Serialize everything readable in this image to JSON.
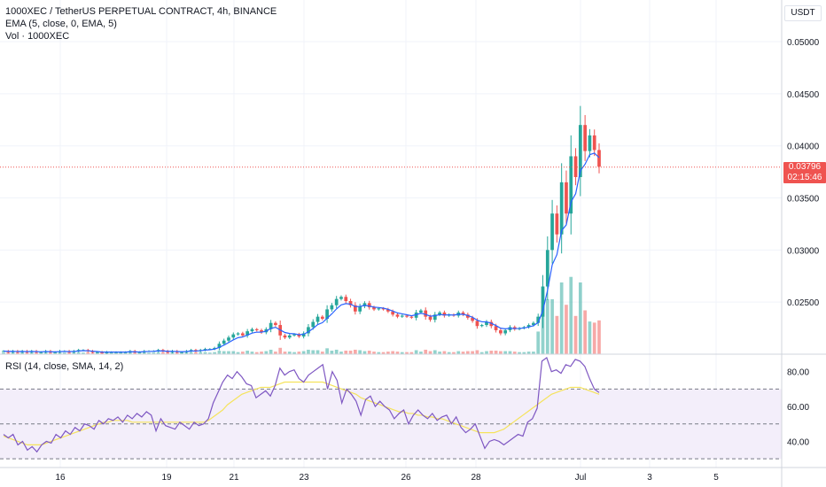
{
  "header": {
    "symbol_line": "1000XEC / TetherUS PERPETUAL CONTRACT, 4h, BINANCE",
    "ema_legend": "EMA (5, close, 0, EMA, 5)",
    "volume_legend": "Vol · 1000XEC"
  },
  "price_axis": {
    "currency": "USDT",
    "last_price": "0.03796",
    "countdown": "02:15:46"
  },
  "rsi_panel": {
    "legend": "RSI (14, close, SMA, 14, 2)"
  },
  "colors": {
    "up": "#26a69a",
    "down": "#ef5350",
    "ema": "#2962ff",
    "rsi_line": "#7e57c2",
    "rsi_ma": "#f5e35c",
    "band_fill": "#f3eefa",
    "grid": "#f0f3fa"
  },
  "chart_data": [
    {
      "type": "candlestick",
      "title": "1000XEC / TetherUS PERPETUAL CONTRACT, 4h, BINANCE",
      "x_ticks": [
        "16",
        "19",
        "21",
        "23",
        "26",
        "28",
        "Jul",
        "3",
        "5"
      ],
      "y_ticks": [
        "0.05000",
        "0.04500",
        "0.04000",
        "0.03500",
        "0.03000",
        "0.02500"
      ],
      "ylim": [
        0.02,
        0.054
      ],
      "last_price": 0.03796,
      "series_closes": [
        0.0203,
        0.0202,
        0.0203,
        0.0202,
        0.0203,
        0.0202,
        0.0203,
        0.0202,
        0.0202,
        0.0203,
        0.0202,
        0.0202,
        0.0203,
        0.0203,
        0.0202,
        0.0203,
        0.0204,
        0.0204,
        0.0203,
        0.0202,
        0.0202,
        0.0201,
        0.0202,
        0.0202,
        0.0202,
        0.0202,
        0.0202,
        0.0203,
        0.0202,
        0.0202,
        0.0203,
        0.0203,
        0.0203,
        0.0204,
        0.0203,
        0.0202,
        0.0203,
        0.0202,
        0.0202,
        0.0203,
        0.0204,
        0.0203,
        0.0204,
        0.0205,
        0.0205,
        0.0206,
        0.021,
        0.0213,
        0.0216,
        0.0219,
        0.022,
        0.0218,
        0.0222,
        0.0224,
        0.0223,
        0.0221,
        0.0224,
        0.023,
        0.0228,
        0.0218,
        0.0216,
        0.0218,
        0.0219,
        0.0217,
        0.022,
        0.0226,
        0.0231,
        0.0236,
        0.0234,
        0.0243,
        0.0247,
        0.0253,
        0.0255,
        0.0251,
        0.0247,
        0.0241,
        0.0246,
        0.0249,
        0.0245,
        0.0243,
        0.0244,
        0.0243,
        0.0241,
        0.0238,
        0.0236,
        0.0237,
        0.0236,
        0.0235,
        0.024,
        0.0242,
        0.0236,
        0.0233,
        0.0238,
        0.024,
        0.0237,
        0.0238,
        0.0237,
        0.024,
        0.0238,
        0.0235,
        0.0232,
        0.0227,
        0.0228,
        0.0231,
        0.0227,
        0.0223,
        0.022,
        0.0223,
        0.0226,
        0.0224,
        0.0225,
        0.0226,
        0.0228,
        0.023,
        0.0236,
        0.0265,
        0.03,
        0.0335,
        0.0315,
        0.0365,
        0.0335,
        0.039,
        0.037,
        0.042,
        0.0395,
        0.041,
        0.0396,
        0.038
      ],
      "volume_range_note": "volume spike at end of June"
    },
    {
      "type": "line",
      "title": "RSI (14, close, SMA, 14, 2)",
      "y_ticks": [
        "80.00",
        "60.00",
        "40.00"
      ],
      "ylim": [
        25,
        90
      ],
      "bands": [
        70,
        50,
        30
      ],
      "rsi_values": [
        44,
        42,
        44,
        38,
        40,
        35,
        37,
        34,
        38,
        40,
        39,
        44,
        42,
        46,
        44,
        48,
        46,
        50,
        49,
        47,
        52,
        50,
        53,
        52,
        54,
        51,
        55,
        53,
        56,
        54,
        57,
        55,
        46,
        53,
        49,
        48,
        47,
        51,
        49,
        47,
        51,
        49,
        50,
        53,
        62,
        68,
        74,
        78,
        76,
        80,
        77,
        73,
        72,
        65,
        67,
        69,
        66,
        72,
        82,
        78,
        80,
        81,
        76,
        74,
        78,
        80,
        82,
        84,
        70,
        80,
        75,
        62,
        70,
        67,
        63,
        55,
        64,
        66,
        60,
        63,
        60,
        58,
        53,
        56,
        58,
        50,
        55,
        58,
        55,
        53,
        56,
        52,
        54,
        55,
        50,
        54,
        48,
        45,
        47,
        50,
        43,
        36,
        40,
        41,
        40,
        38,
        40,
        42,
        44,
        43,
        51,
        53,
        59,
        86,
        88,
        80,
        81,
        79,
        84,
        83,
        87,
        86,
        83,
        76,
        70,
        68
      ],
      "rsi_ma_values": [
        43,
        42,
        41,
        40,
        39,
        38,
        38,
        38,
        38,
        39,
        40,
        41,
        42,
        43,
        44,
        45,
        46,
        47,
        48,
        49,
        50,
        51,
        51,
        52,
        52,
        52,
        52,
        51,
        51,
        51,
        51,
        51,
        51,
        51,
        51,
        51,
        51,
        51,
        51,
        51,
        51,
        51,
        51,
        52,
        54,
        56,
        58,
        61,
        63,
        65,
        67,
        68,
        69,
        70,
        71,
        71,
        71,
        72,
        73,
        74,
        74,
        74,
        74,
        74,
        74,
        74,
        74,
        74,
        73,
        72,
        71,
        70,
        69,
        68,
        67,
        65,
        64,
        63,
        62,
        61,
        60,
        59,
        58,
        57,
        57,
        56,
        56,
        55,
        55,
        54,
        54,
        53,
        53,
        52,
        51,
        50,
        49,
        48,
        47,
        46,
        45,
        45,
        45,
        45,
        46,
        47,
        49,
        51,
        53,
        55,
        57,
        59,
        61,
        63,
        65,
        67,
        68,
        69,
        70,
        71,
        71,
        71,
        70,
        69,
        68,
        67
      ]
    }
  ]
}
